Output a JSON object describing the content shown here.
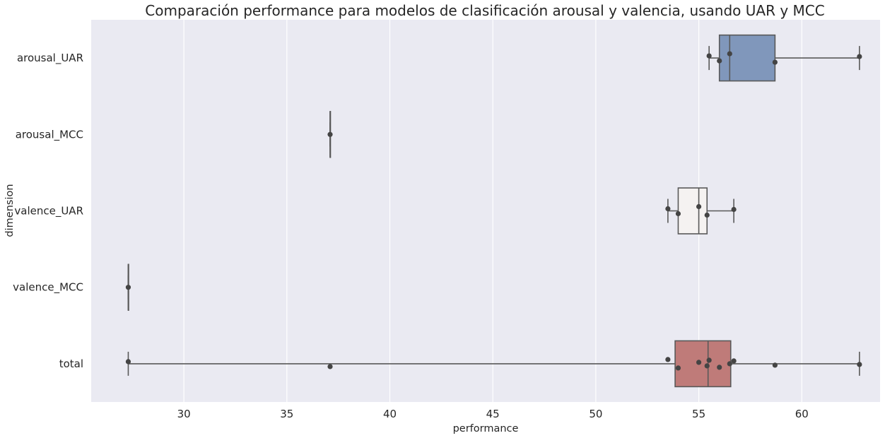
{
  "chart_data": {
    "type": "box",
    "orientation": "horizontal",
    "title": "Comparación performance para modelos de clasificación arousal y valencia, usando UAR y MCC",
    "xlabel": "performance",
    "ylabel": "dimension",
    "xlim": [
      25.5,
      63.8
    ],
    "xticks": [
      30,
      35,
      40,
      45,
      50,
      55,
      60
    ],
    "grid": true,
    "categories": [
      "arousal_UAR",
      "arousal_MCC",
      "valence_UAR",
      "valence_MCC",
      "total"
    ],
    "colors": {
      "background": "#eaeaf2",
      "grid": "#ffffff",
      "edge": "#595959",
      "point": "#444444"
    },
    "boxes": [
      {
        "category": "arousal_UAR",
        "whisker_low": 55.5,
        "q1": 56.0,
        "median": 56.5,
        "q3": 58.7,
        "whisker_high": 62.8,
        "color": "#8097bb"
      },
      {
        "category": "arousal_MCC",
        "whisker_low": 37.1,
        "q1": 37.1,
        "median": 37.1,
        "q3": 37.1,
        "whisker_high": 37.1,
        "color": "#e8e0dc"
      },
      {
        "category": "valence_UAR",
        "whisker_low": 53.5,
        "q1": 54.0,
        "median": 55.0,
        "q3": 55.4,
        "whisker_high": 56.7,
        "color": "#f5f2f1"
      },
      {
        "category": "valence_MCC",
        "whisker_low": 27.3,
        "q1": 27.3,
        "median": 27.3,
        "q3": 27.3,
        "whisker_high": 27.3,
        "color": "#dcb8b6"
      },
      {
        "category": "total",
        "whisker_low": 27.3,
        "q1": 53.85,
        "median": 55.45,
        "q3": 56.55,
        "whisker_high": 62.8,
        "color": "#bf7b79"
      }
    ],
    "points": [
      {
        "category": "arousal_UAR",
        "values": [
          55.5,
          56.0,
          56.5,
          58.7,
          62.8
        ]
      },
      {
        "category": "arousal_MCC",
        "values": [
          37.1
        ]
      },
      {
        "category": "valence_UAR",
        "values": [
          53.5,
          54.0,
          55.0,
          55.4,
          56.7
        ]
      },
      {
        "category": "valence_MCC",
        "values": [
          27.3
        ]
      },
      {
        "category": "total",
        "values": [
          27.3,
          37.1,
          53.5,
          54.0,
          55.0,
          55.4,
          55.5,
          56.0,
          56.5,
          56.7,
          58.7,
          62.8
        ]
      }
    ]
  }
}
